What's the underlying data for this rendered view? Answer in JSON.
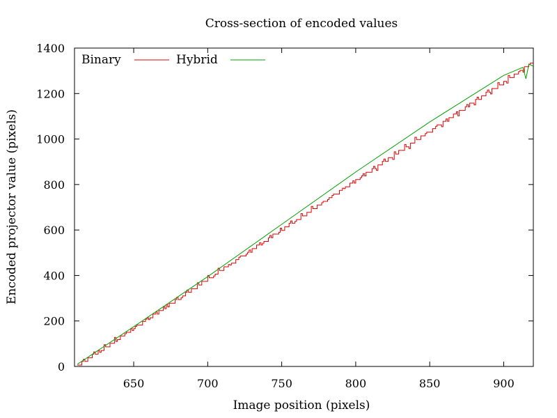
{
  "chart_data": {
    "type": "line",
    "title": "Cross-section of encoded values",
    "xlabel": "Image position (pixels)",
    "ylabel": "Encoded projector value (pixels)",
    "xlim": [
      610,
      920
    ],
    "ylim": [
      0,
      1400
    ],
    "xticks": [
      650,
      700,
      750,
      800,
      850,
      900
    ],
    "yticks": [
      0,
      200,
      400,
      600,
      800,
      1000,
      1200,
      1400
    ],
    "grid": false,
    "legend_position": "top-left",
    "series": [
      {
        "name": "Binary",
        "color": "#e00000",
        "style": "staircase",
        "slope": 4.33,
        "step": 16,
        "x_start": 612,
        "x_end": 920
      },
      {
        "name": "Hybrid",
        "color": "#00a000",
        "style": "smooth",
        "points": [
          [
            612,
            10
          ],
          [
            650,
            175
          ],
          [
            700,
            395
          ],
          [
            750,
            625
          ],
          [
            800,
            855
          ],
          [
            850,
            1075
          ],
          [
            900,
            1280
          ],
          [
            913,
            1315
          ],
          [
            915,
            1265
          ],
          [
            917,
            1330
          ],
          [
            920,
            1320
          ]
        ]
      }
    ]
  }
}
